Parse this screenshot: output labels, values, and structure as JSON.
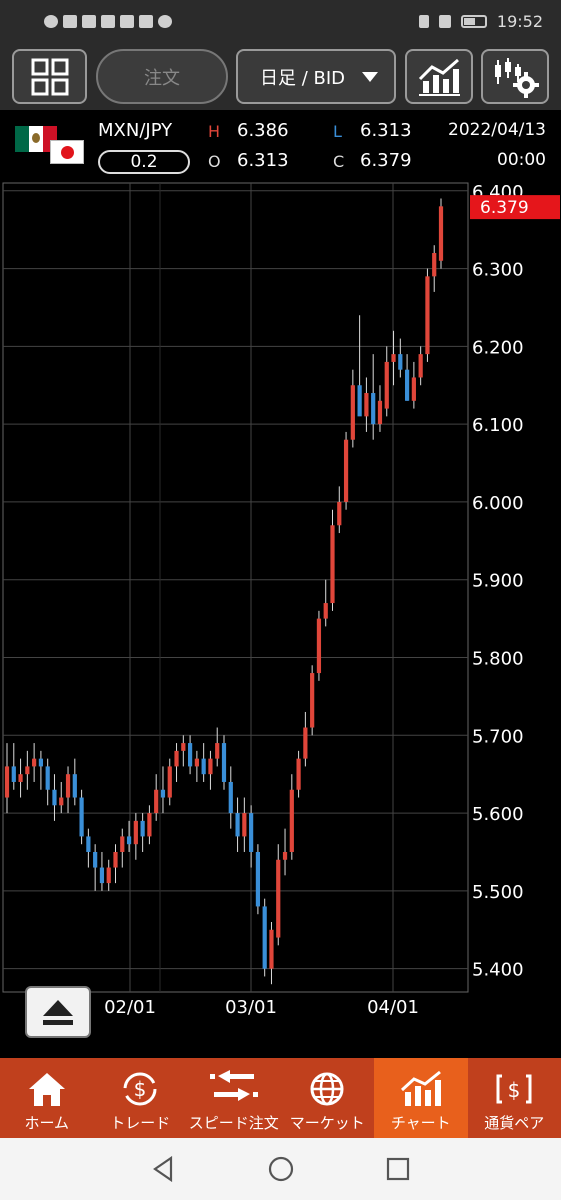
{
  "status_bar": {
    "time": "19:52"
  },
  "toolbar": {
    "order_label": "注文",
    "period_label": "日足 / BID"
  },
  "instrument": {
    "pair": "MXN/JPY",
    "spread": "0.2",
    "high_label": "H",
    "high": "6.386",
    "low_label": "L",
    "low": "6.313",
    "open_label": "O",
    "open": "6.313",
    "close_label": "C",
    "close": "6.379",
    "date": "2022/04/13",
    "time": "00:00"
  },
  "colors": {
    "up": "#e0463a",
    "down": "#3a8fd8",
    "grid": "#444444",
    "price_tag": "#e5161b",
    "nav_bg": "#c0401d",
    "nav_active": "#e8601c"
  },
  "chart_data": {
    "type": "candlestick",
    "y_ticks": [
      "6.400",
      "6.300",
      "6.200",
      "6.100",
      "6.000",
      "5.900",
      "5.800",
      "5.700",
      "5.600",
      "5.500",
      "5.400"
    ],
    "x_ticks": [
      "02/01",
      "03/01",
      "04/01"
    ],
    "current_price": "6.379",
    "ylim": [
      5.37,
      6.41
    ],
    "ohlc": [
      [
        5.62,
        5.69,
        5.6,
        5.66
      ],
      [
        5.66,
        5.69,
        5.63,
        5.64
      ],
      [
        5.64,
        5.67,
        5.62,
        5.65
      ],
      [
        5.65,
        5.68,
        5.63,
        5.66
      ],
      [
        5.66,
        5.69,
        5.64,
        5.67
      ],
      [
        5.67,
        5.68,
        5.63,
        5.66
      ],
      [
        5.66,
        5.67,
        5.61,
        5.63
      ],
      [
        5.63,
        5.65,
        5.59,
        5.61
      ],
      [
        5.61,
        5.64,
        5.6,
        5.62
      ],
      [
        5.62,
        5.66,
        5.6,
        5.65
      ],
      [
        5.65,
        5.67,
        5.61,
        5.62
      ],
      [
        5.62,
        5.63,
        5.56,
        5.57
      ],
      [
        5.57,
        5.58,
        5.53,
        5.55
      ],
      [
        5.55,
        5.56,
        5.5,
        5.53
      ],
      [
        5.53,
        5.55,
        5.5,
        5.51
      ],
      [
        5.51,
        5.54,
        5.5,
        5.53
      ],
      [
        5.53,
        5.56,
        5.51,
        5.55
      ],
      [
        5.55,
        5.58,
        5.53,
        5.57
      ],
      [
        5.57,
        5.59,
        5.55,
        5.56
      ],
      [
        5.56,
        5.6,
        5.54,
        5.59
      ],
      [
        5.59,
        5.6,
        5.55,
        5.57
      ],
      [
        5.57,
        5.61,
        5.56,
        5.6
      ],
      [
        5.6,
        5.65,
        5.59,
        5.63
      ],
      [
        5.63,
        5.66,
        5.6,
        5.62
      ],
      [
        5.62,
        5.67,
        5.61,
        5.66
      ],
      [
        5.66,
        5.69,
        5.64,
        5.68
      ],
      [
        5.68,
        5.7,
        5.66,
        5.69
      ],
      [
        5.69,
        5.7,
        5.65,
        5.66
      ],
      [
        5.66,
        5.68,
        5.64,
        5.67
      ],
      [
        5.67,
        5.69,
        5.64,
        5.65
      ],
      [
        5.65,
        5.68,
        5.63,
        5.67
      ],
      [
        5.67,
        5.71,
        5.66,
        5.69
      ],
      [
        5.69,
        5.7,
        5.63,
        5.64
      ],
      [
        5.64,
        5.66,
        5.58,
        5.6
      ],
      [
        5.6,
        5.62,
        5.55,
        5.57
      ],
      [
        5.57,
        5.62,
        5.55,
        5.6
      ],
      [
        5.6,
        5.61,
        5.53,
        5.55
      ],
      [
        5.55,
        5.56,
        5.47,
        5.48
      ],
      [
        5.48,
        5.49,
        5.39,
        5.4
      ],
      [
        5.4,
        5.46,
        5.38,
        5.45
      ],
      [
        5.44,
        5.56,
        5.43,
        5.54
      ],
      [
        5.54,
        5.58,
        5.52,
        5.55
      ],
      [
        5.55,
        5.65,
        5.54,
        5.63
      ],
      [
        5.63,
        5.68,
        5.62,
        5.67
      ],
      [
        5.67,
        5.73,
        5.66,
        5.71
      ],
      [
        5.71,
        5.79,
        5.7,
        5.78
      ],
      [
        5.78,
        5.86,
        5.77,
        5.85
      ],
      [
        5.85,
        5.9,
        5.84,
        5.87
      ],
      [
        5.87,
        5.99,
        5.86,
        5.97
      ],
      [
        5.97,
        6.02,
        5.96,
        6.0
      ],
      [
        6.0,
        6.09,
        5.99,
        6.08
      ],
      [
        6.08,
        6.17,
        6.07,
        6.15
      ],
      [
        6.15,
        6.24,
        6.12,
        6.11
      ],
      [
        6.11,
        6.16,
        6.09,
        6.14
      ],
      [
        6.14,
        6.19,
        6.08,
        6.1
      ],
      [
        6.1,
        6.15,
        6.09,
        6.13
      ],
      [
        6.12,
        6.2,
        6.11,
        6.18
      ],
      [
        6.18,
        6.22,
        6.15,
        6.19
      ],
      [
        6.19,
        6.21,
        6.16,
        6.17
      ],
      [
        6.17,
        6.19,
        6.13,
        6.13
      ],
      [
        6.13,
        6.18,
        6.12,
        6.16
      ],
      [
        6.16,
        6.2,
        6.15,
        6.19
      ],
      [
        6.19,
        6.3,
        6.18,
        6.29
      ],
      [
        6.29,
        6.33,
        6.27,
        6.32
      ],
      [
        6.31,
        6.39,
        6.3,
        6.38
      ]
    ]
  },
  "bottom_nav": [
    {
      "label": "ホーム",
      "icon": "home-icon"
    },
    {
      "label": "トレード",
      "icon": "trade-icon"
    },
    {
      "label": "スピード注文",
      "icon": "speed-order-icon"
    },
    {
      "label": "マーケット",
      "icon": "market-icon"
    },
    {
      "label": "チャート",
      "icon": "chart-icon",
      "active": true
    },
    {
      "label": "通貨ペア",
      "icon": "currency-pair-icon"
    }
  ]
}
